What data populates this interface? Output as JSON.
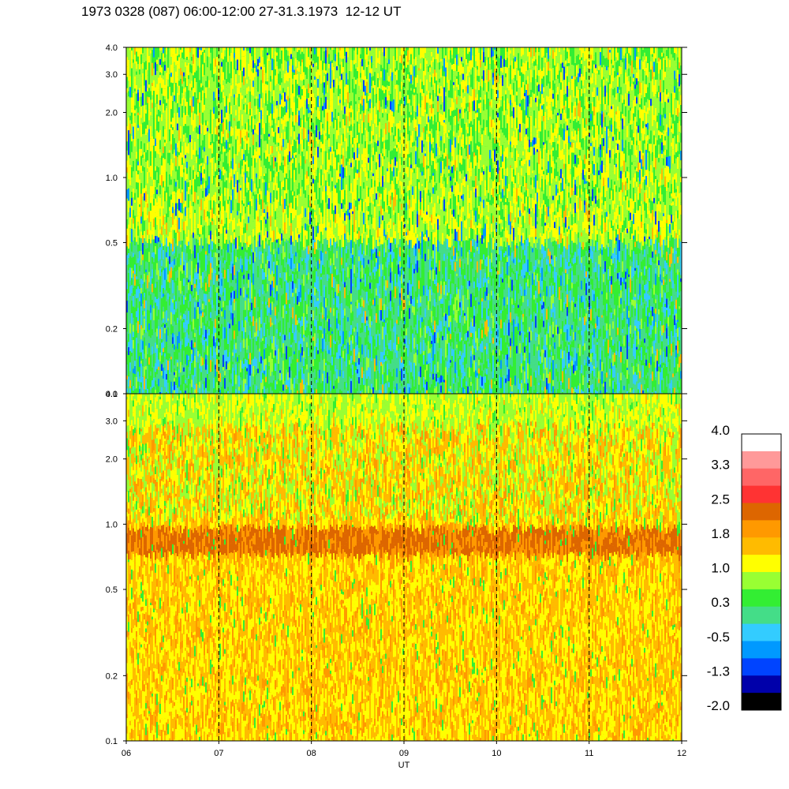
{
  "title": "1973 0328 (087) 06:00-12:00 27-31.3.1973  12-12 UT",
  "chart_data": {
    "type": "heatmap",
    "xlabel": "UT",
    "x_ticks": [
      "06",
      "07",
      "08",
      "09",
      "10",
      "11",
      "12"
    ],
    "x_range": [
      6,
      12
    ],
    "dashed_gridlines_x": [
      7,
      8,
      9,
      10,
      11
    ],
    "y_scale": "log",
    "y_range": [
      0.1,
      4.0
    ],
    "y_ticks": [
      "0.1",
      "0.2",
      "0.5",
      "1.0",
      "2.0",
      "3.0",
      "4.0"
    ],
    "y_tick_values": [
      0.1,
      0.2,
      0.5,
      1.0,
      2.0,
      3.0,
      4.0
    ],
    "panels": [
      {
        "id": "upper",
        "dominant_level": 0.3,
        "description_levels": [
          -0.5,
          0.3,
          1.0
        ]
      },
      {
        "id": "lower",
        "dominant_level": 1.8,
        "band_y": [
          0.75,
          1.0
        ],
        "band_level": 2.5
      }
    ],
    "colorbar": {
      "labels": [
        "4.0",
        "3.3",
        "2.5",
        "1.8",
        "1.0",
        "0.3",
        "-0.5",
        "-1.3",
        "-2.0"
      ],
      "colors": [
        "#ffffff",
        "#ff9999",
        "#ff6666",
        "#ff3333",
        "#dd6600",
        "#ff9900",
        "#ffbb00",
        "#ffff00",
        "#99ff33",
        "#33ee33",
        "#44dd88",
        "#33ccff",
        "#0099ff",
        "#0044ff",
        "#0000aa",
        "#000000"
      ]
    }
  }
}
